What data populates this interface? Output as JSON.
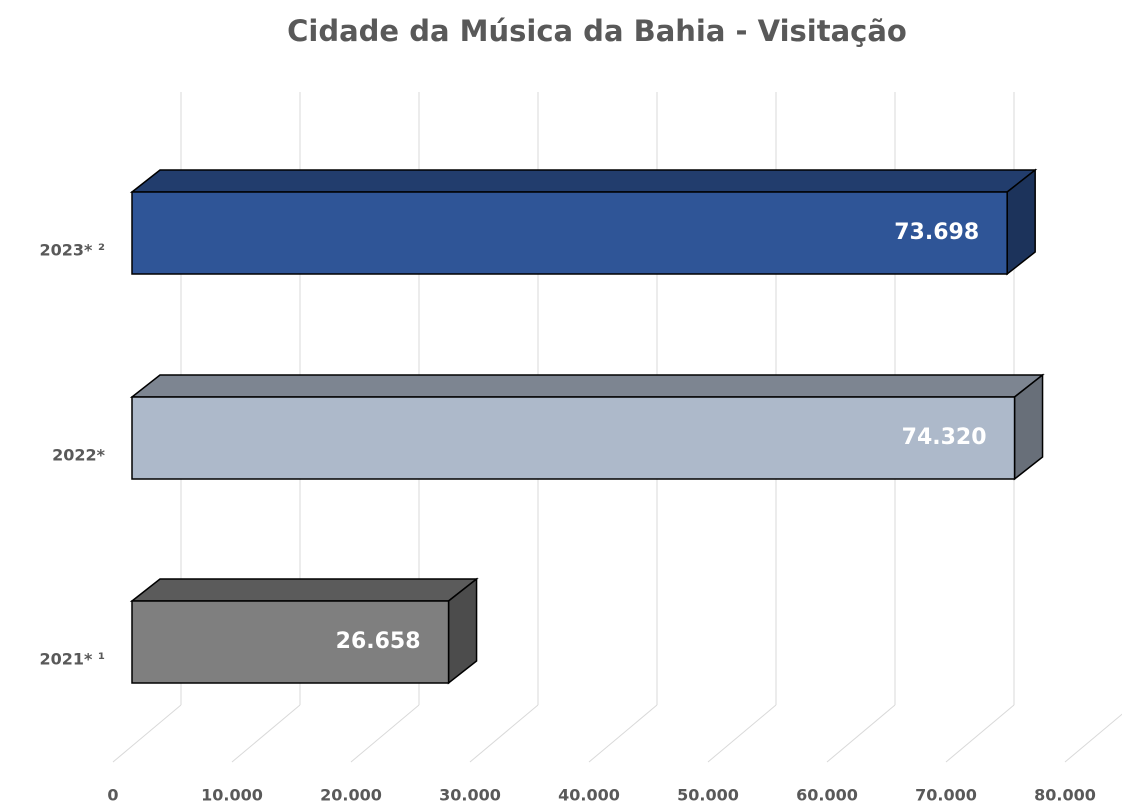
{
  "chart_data": {
    "type": "bar3d-horizontal",
    "title": "Cidade da Música da Bahia - Visitação",
    "categories": [
      "2021* ¹",
      "2022*",
      "2023* ²"
    ],
    "values": [
      26658,
      74320,
      73698
    ],
    "value_labels": [
      "26.658",
      "74.320",
      "73.698"
    ],
    "colors": [
      "#7f7f7f",
      "#adb9ca",
      "#2f5597"
    ],
    "xlim": [
      0,
      80000
    ],
    "xticks": [
      0,
      {
        "value": 10000,
        "label": "10.000"
      },
      {
        "value": 20000,
        "label": "20.000"
      },
      {
        "value": 30000,
        "label": "30.000"
      },
      {
        "value": 40000,
        "label": "40.000"
      },
      {
        "value": 50000,
        "label": "50.000"
      },
      {
        "value": 60000,
        "label": "60.000"
      },
      {
        "value": 70000,
        "label": "70.000"
      },
      {
        "value": 80000,
        "label": "80.000"
      }
    ],
    "grid": true
  }
}
